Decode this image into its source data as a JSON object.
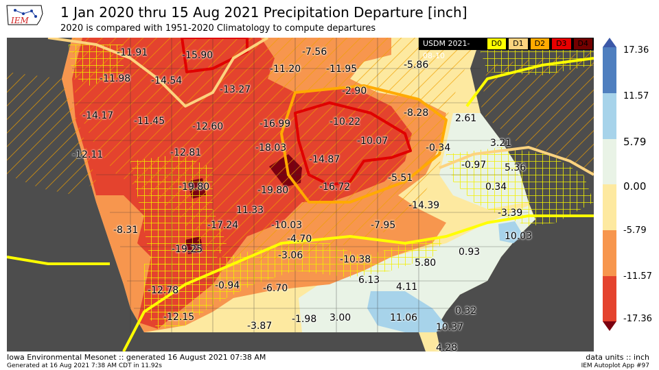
{
  "logo_text": "IEM",
  "title": "1 Jan 2020 thru 15 Aug 2021 Precipitation Departure [inch]",
  "subtitle": "2020 is compared with 1951-2020 Climatology to compute departures",
  "usdm": {
    "label": "USDM 2021-08-10",
    "categories": [
      {
        "label": "D0",
        "color": "#ffff00"
      },
      {
        "label": "D1",
        "color": "#fcd37f"
      },
      {
        "label": "D2",
        "color": "#ffaa00"
      },
      {
        "label": "D3",
        "color": "#e60000"
      },
      {
        "label": "D4",
        "color": "#730000"
      }
    ]
  },
  "colorbar": {
    "labels": [
      "17.36",
      "11.57",
      "5.79",
      "0.00",
      "-5.79",
      "-11.57",
      "-17.36"
    ],
    "colors": [
      "#4f7fbf",
      "#a7d3ea",
      "#e9f3e6",
      "#fde9a0",
      "#f7964e",
      "#e4432e"
    ]
  },
  "station_values": [
    {
      "name": "v1",
      "value": "-11.91"
    },
    {
      "name": "v2",
      "value": "-15.90"
    },
    {
      "name": "v3",
      "value": "-7.56"
    },
    {
      "name": "v4",
      "value": "-5.86"
    },
    {
      "name": "v5",
      "value": "-11.98"
    },
    {
      "name": "v6",
      "value": "-14.54"
    },
    {
      "name": "v7",
      "value": "-11.20"
    },
    {
      "name": "v8",
      "value": "-11.95"
    },
    {
      "name": "v9",
      "value": "-13.27"
    },
    {
      "name": "v10",
      "value": "-2.90"
    },
    {
      "name": "v11",
      "value": "-14.17"
    },
    {
      "name": "v12",
      "value": "-11.45"
    },
    {
      "name": "v13",
      "value": "-12.60"
    },
    {
      "name": "v14",
      "value": "-16.99"
    },
    {
      "name": "v15",
      "value": "-10.22"
    },
    {
      "name": "v16",
      "value": "-8.28"
    },
    {
      "name": "v17",
      "value": "2.61"
    },
    {
      "name": "v18",
      "value": "-12.11"
    },
    {
      "name": "v19",
      "value": "-12.81"
    },
    {
      "name": "v20",
      "value": "-18.03"
    },
    {
      "name": "v21",
      "value": "-10.07"
    },
    {
      "name": "v22",
      "value": "-0.34"
    },
    {
      "name": "v23",
      "value": "3.21"
    },
    {
      "name": "v24",
      "value": "-14.87"
    },
    {
      "name": "v25",
      "value": "-0.97"
    },
    {
      "name": "v26",
      "value": "5.36"
    },
    {
      "name": "v27",
      "value": "-19.80"
    },
    {
      "name": "v28",
      "value": "-19.80"
    },
    {
      "name": "v29",
      "value": "-16.72"
    },
    {
      "name": "v30",
      "value": "-5.51"
    },
    {
      "name": "v31",
      "value": "0.34"
    },
    {
      "name": "v32",
      "value": "-8.31"
    },
    {
      "name": "v33",
      "value": "11.33"
    },
    {
      "name": "v34",
      "value": "-14.39"
    },
    {
      "name": "v35",
      "value": "-3.39"
    },
    {
      "name": "v36",
      "value": "-17.24"
    },
    {
      "name": "v37",
      "value": "-10.03"
    },
    {
      "name": "v38",
      "value": "-7.95"
    },
    {
      "name": "v39",
      "value": "10.03"
    },
    {
      "name": "v40",
      "value": "-4.70"
    },
    {
      "name": "v41",
      "value": "-19.25"
    },
    {
      "name": "v42",
      "value": "-3.06"
    },
    {
      "name": "v43",
      "value": "-10.38"
    },
    {
      "name": "v44",
      "value": "0.93"
    },
    {
      "name": "v45",
      "value": "5.80"
    },
    {
      "name": "v46",
      "value": "-0.94"
    },
    {
      "name": "v47",
      "value": "-6.70"
    },
    {
      "name": "v48",
      "value": "6.13"
    },
    {
      "name": "v49",
      "value": "4.11"
    },
    {
      "name": "v50",
      "value": "-12.78"
    },
    {
      "name": "v51",
      "value": "0.32"
    },
    {
      "name": "v52",
      "value": "-12.15"
    },
    {
      "name": "v53",
      "value": "-3.87"
    },
    {
      "name": "v54",
      "value": "-1.98"
    },
    {
      "name": "v55",
      "value": "3.00"
    },
    {
      "name": "v56",
      "value": "11.06"
    },
    {
      "name": "v57",
      "value": "10.37"
    },
    {
      "name": "v58",
      "value": "4.28"
    }
  ],
  "footer": {
    "left_line1": "Iowa Environmental Mesonet :: generated 16 August 2021 07:38 AM",
    "left_line2": "Generated at 16 Aug 2021 7:38 AM CDT in 11.92s",
    "right_line1": "data units :: inch",
    "right_line2": "IEM Autoplot App #97"
  }
}
